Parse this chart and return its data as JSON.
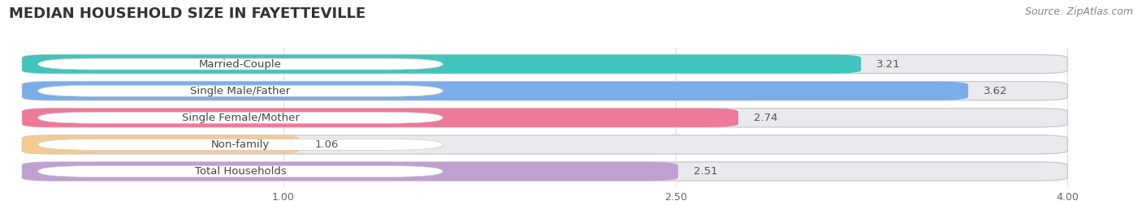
{
  "title": "MEDIAN HOUSEHOLD SIZE IN FAYETTEVILLE",
  "source": "Source: ZipAtlas.com",
  "categories": [
    "Married-Couple",
    "Single Male/Father",
    "Single Female/Mother",
    "Non-family",
    "Total Households"
  ],
  "values": [
    3.21,
    3.62,
    2.74,
    1.06,
    2.51
  ],
  "bar_colors": [
    "#40C4BC",
    "#7BAEE8",
    "#F07898",
    "#F5C990",
    "#C0A0D0"
  ],
  "bar_bg_color": "#EAEAEE",
  "x_ticks": [
    1.0,
    2.5,
    4.0
  ],
  "x_tick_labels": [
    "1.00",
    "2.50",
    "4.00"
  ],
  "xmin": 0.0,
  "xmax": 4.0,
  "xlim_left": -0.05,
  "xlim_right": 4.25,
  "value_color_outside": "#555555",
  "label_color": "#444444",
  "title_fontsize": 13,
  "source_fontsize": 9,
  "bar_label_fontsize": 9.5,
  "value_fontsize": 9.5,
  "tick_fontsize": 9,
  "background_color": "#FFFFFF",
  "pill_bg_color": "#FFFFFF",
  "grid_color": "#DDDDDD",
  "bar_sep_color": "#CCCCCC"
}
